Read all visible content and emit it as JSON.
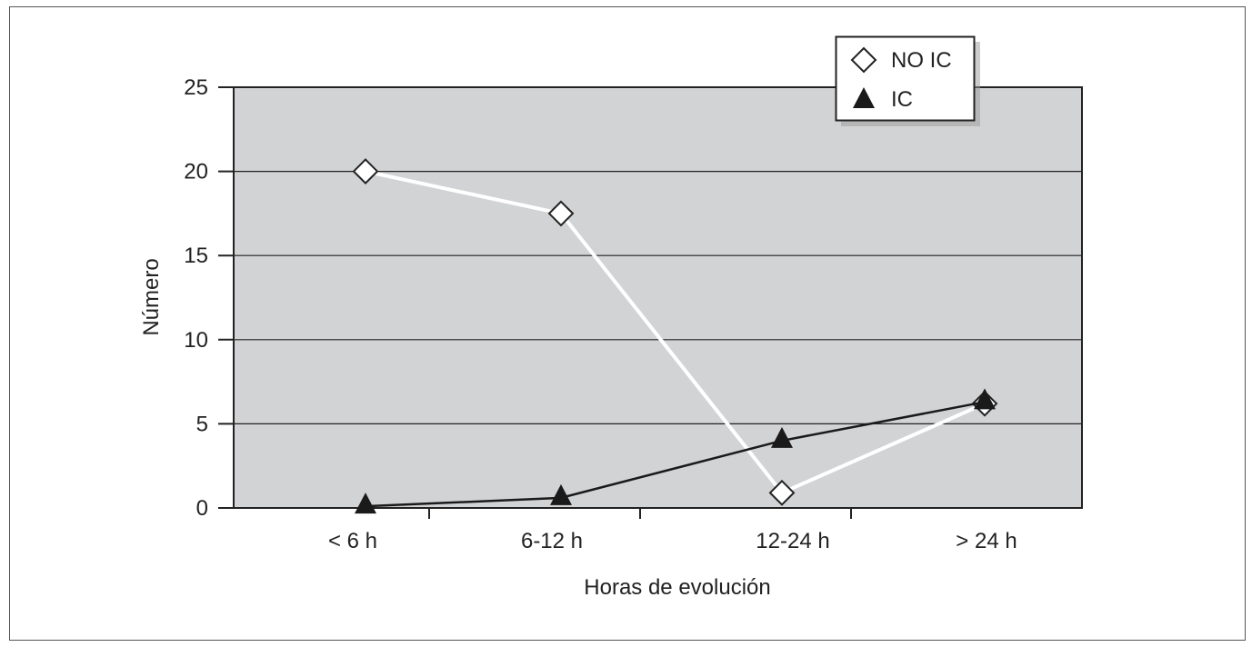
{
  "chart_data": {
    "type": "line",
    "title": "",
    "xlabel": "Horas de evolución",
    "ylabel": "Número",
    "categories": [
      "< 6 h",
      "6-12 h",
      "12-24 h",
      "> 24 h"
    ],
    "ylim": [
      0,
      25
    ],
    "yticks": [
      0,
      5,
      10,
      15,
      20,
      25
    ],
    "grid": true,
    "legend_position": "top-right",
    "series": [
      {
        "name": "NO IC",
        "marker": "diamond-open",
        "line_color": "#ffffff",
        "values": [
          20,
          17.5,
          0.9,
          6.2
        ]
      },
      {
        "name": "IC",
        "marker": "triangle-filled",
        "line_color": "#1a1a1a",
        "values": [
          0.1,
          0.6,
          4,
          6.3
        ]
      }
    ],
    "colors": {
      "plot_bg": "#d2d3d5",
      "axis": "#222222"
    }
  }
}
